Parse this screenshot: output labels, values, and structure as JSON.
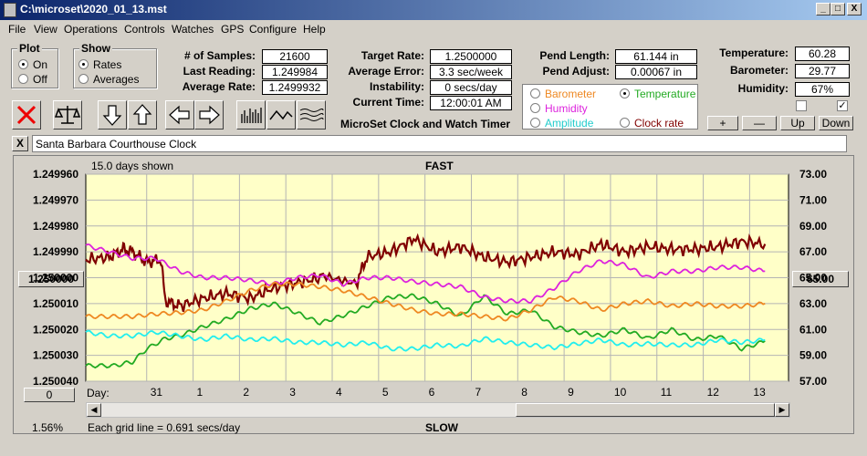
{
  "window": {
    "title": "C:\\microset\\2020_01_13.mst",
    "min": "_",
    "max": "□",
    "close": "X"
  },
  "menu": [
    "File",
    "View",
    "Operations",
    "Controls",
    "Watches",
    "GPS",
    "Configure",
    "Help"
  ],
  "plot_group": {
    "title": "Plot",
    "on": "On",
    "off": "Off"
  },
  "show_group": {
    "title": "Show",
    "rates": "Rates",
    "averages": "Averages"
  },
  "stats": {
    "samples_label": "# of Samples:",
    "samples": "21600",
    "last_label": "Last Reading:",
    "last": "1.249984",
    "avg_rate_label": "Average Rate:",
    "avg_rate": "1.2499932",
    "target_label": "Target Rate:",
    "target": "1.2500000",
    "avg_err_label": "Average Error:",
    "avg_err": "3.3 sec/week",
    "instab_label": "Instability:",
    "instab": "0 secs/day",
    "time_label": "Current Time:",
    "time": "12:00:01 AM",
    "pend_len_label": "Pend Length:",
    "pend_len": "61.144 in",
    "pend_adj_label": "Pend Adjust:",
    "pend_adj": "0.00067 in",
    "temp_label": "Temperature:",
    "temp": "60.28",
    "baro_label": "Barometer:",
    "baro": "29.77",
    "hum_label": "Humidity:",
    "hum": "67%"
  },
  "app_caption": "MicroSet Clock and Watch Timer",
  "sensor_options": {
    "barometer": "Barometer",
    "temperature": "Temperature",
    "humidity": "Humidity",
    "amplitude": "Amplitude",
    "clock_rate": "Clock rate"
  },
  "right_buttons": {
    "plus": "+",
    "minus": "—",
    "up": "Up",
    "down": "Down"
  },
  "clock_name": "Santa Barbara Courthouse Clock",
  "clear_button": "X",
  "chart_labels": {
    "days_shown": "15.0 days shown",
    "fast": "FAST",
    "slow": "SLOW",
    "center_left": "1.250000",
    "center_right": "65.00",
    "offset_btn": "0",
    "percent": "1.56%",
    "grid_note": "Each grid line = 0.691 secs/day",
    "day_label": "Day:"
  },
  "colors": {
    "rate": "#800000",
    "temperature": "#22aa22",
    "humidity": "#dd22dd",
    "barometer": "#ee8822",
    "amplitude": "#22eeee",
    "plot_bg": "#ffffc8"
  },
  "chart_data": {
    "type": "line",
    "title": "",
    "xlabel": "Day",
    "x_range_days": [
      0,
      15
    ],
    "x_tick_labels": [
      "31",
      "1",
      "2",
      "3",
      "4",
      "5",
      "6",
      "7",
      "8",
      "9",
      "10",
      "11",
      "12",
      "13"
    ],
    "left_ticks": [
      "1.249960",
      "1.249970",
      "1.249980",
      "1.249990",
      "1.250000",
      "1.250010",
      "1.250020",
      "1.250030",
      "1.250040"
    ],
    "right_ticks": [
      "73.00",
      "71.00",
      "69.00",
      "67.00",
      "65.00",
      "63.00",
      "61.00",
      "59.00",
      "57.00"
    ],
    "left_range": [
      1.24996,
      1.25004
    ],
    "right_range": [
      57,
      73
    ],
    "grid": true,
    "series": [
      {
        "name": "Rate",
        "axis": "left",
        "color": "#800000",
        "points": [
          [
            0,
            1.249993
          ],
          [
            0.5,
            1.249992
          ],
          [
            0.8,
            1.249989
          ],
          [
            1.0,
            1.24999
          ],
          [
            1.3,
            1.249994
          ],
          [
            1.6,
            1.249993
          ],
          [
            1.7,
            1.250009
          ],
          [
            2.0,
            1.250011
          ],
          [
            2.5,
            1.250008
          ],
          [
            3.0,
            1.250006
          ],
          [
            3.5,
            1.250008
          ],
          [
            4.0,
            1.250004
          ],
          [
            4.5,
            1.250002
          ],
          [
            5.0,
            1.25
          ],
          [
            5.8,
            1.250001
          ],
          [
            6.0,
            1.249992
          ],
          [
            6.5,
            1.24999
          ],
          [
            7.0,
            1.249985
          ],
          [
            7.5,
            1.24999
          ],
          [
            8.0,
            1.249988
          ],
          [
            8.5,
            1.249992
          ],
          [
            9.0,
            1.249994
          ],
          [
            9.5,
            1.249992
          ],
          [
            10.0,
            1.24999
          ],
          [
            10.5,
            1.249991
          ],
          [
            11.0,
            1.249987
          ],
          [
            11.5,
            1.24999
          ],
          [
            12.0,
            1.249988
          ],
          [
            12.5,
            1.249989
          ],
          [
            13.0,
            1.249989
          ],
          [
            13.5,
            1.249988
          ],
          [
            14.0,
            1.249986
          ],
          [
            14.5,
            1.249987
          ]
        ]
      },
      {
        "name": "Temperature",
        "axis": "right",
        "color": "#22aa22",
        "points": [
          [
            0,
            58.2
          ],
          [
            0.6,
            58.2
          ],
          [
            1.0,
            58.5
          ],
          [
            1.3,
            59.5
          ],
          [
            1.7,
            60.3
          ],
          [
            2.0,
            60.5
          ],
          [
            2.5,
            61.2
          ],
          [
            3.0,
            61.8
          ],
          [
            3.5,
            62.6
          ],
          [
            4.0,
            63.0
          ],
          [
            4.5,
            62.3
          ],
          [
            5.0,
            61.5
          ],
          [
            5.6,
            62.2
          ],
          [
            6.0,
            62.8
          ],
          [
            6.5,
            63.5
          ],
          [
            7.0,
            63.6
          ],
          [
            7.5,
            63.0
          ],
          [
            8.0,
            62.0
          ],
          [
            8.5,
            63.6
          ],
          [
            9.0,
            62.2
          ],
          [
            9.5,
            62.5
          ],
          [
            10.0,
            61.2
          ],
          [
            10.5,
            60.8
          ],
          [
            11.0,
            60.5
          ],
          [
            11.5,
            61.0
          ],
          [
            12.0,
            60.3
          ],
          [
            12.5,
            61.0
          ],
          [
            13.0,
            60.2
          ],
          [
            13.5,
            60.5
          ],
          [
            14.0,
            59.5
          ],
          [
            14.5,
            60.1
          ]
        ]
      },
      {
        "name": "Humidity",
        "axis": "right",
        "color": "#dd22dd",
        "points": [
          [
            0,
            67.5
          ],
          [
            0.5,
            67.0
          ],
          [
            1.0,
            66.5
          ],
          [
            1.5,
            66.5
          ],
          [
            2.0,
            65.5
          ],
          [
            2.5,
            65.0
          ],
          [
            3.0,
            65.0
          ],
          [
            3.5,
            64.8
          ],
          [
            4.0,
            64.5
          ],
          [
            4.5,
            65.0
          ],
          [
            5.0,
            65.2
          ],
          [
            5.5,
            64.5
          ],
          [
            6.0,
            65.0
          ],
          [
            6.5,
            65.0
          ],
          [
            7.0,
            64.7
          ],
          [
            7.5,
            64.5
          ],
          [
            8.0,
            64.3
          ],
          [
            8.5,
            63.5
          ],
          [
            9.0,
            63.2
          ],
          [
            9.5,
            63.2
          ],
          [
            10.0,
            64.2
          ],
          [
            10.5,
            65.5
          ],
          [
            11.0,
            66.3
          ],
          [
            11.5,
            66.0
          ],
          [
            12.0,
            65.0
          ],
          [
            12.5,
            65.5
          ],
          [
            13.0,
            65.5
          ],
          [
            13.5,
            65.8
          ],
          [
            14.0,
            65.8
          ],
          [
            14.5,
            65.5
          ]
        ]
      },
      {
        "name": "Barometer",
        "axis": "right",
        "color": "#ee8822",
        "points": [
          [
            0,
            62.0
          ],
          [
            0.5,
            62.0
          ],
          [
            1.0,
            62.0
          ],
          [
            1.5,
            62.2
          ],
          [
            2.0,
            62.3
          ],
          [
            2.5,
            62.5
          ],
          [
            3.0,
            63.2
          ],
          [
            3.5,
            64.0
          ],
          [
            4.0,
            64.5
          ],
          [
            4.5,
            64.5
          ],
          [
            5.0,
            64.3
          ],
          [
            5.5,
            64.0
          ],
          [
            6.0,
            63.5
          ],
          [
            6.5,
            63.0
          ],
          [
            7.0,
            62.5
          ],
          [
            7.5,
            62.2
          ],
          [
            8.0,
            62.2
          ],
          [
            8.5,
            62.0
          ],
          [
            9.0,
            61.8
          ],
          [
            9.5,
            62.5
          ],
          [
            10.0,
            63.5
          ],
          [
            10.5,
            63.2
          ],
          [
            11.0,
            62.5
          ],
          [
            11.5,
            63.0
          ],
          [
            12.0,
            63.2
          ],
          [
            12.5,
            62.8
          ],
          [
            13.0,
            63.0
          ],
          [
            13.5,
            62.8
          ],
          [
            14.0,
            62.8
          ],
          [
            14.5,
            63.0
          ]
        ]
      },
      {
        "name": "Amplitude",
        "axis": "right",
        "color": "#22eeee",
        "points": [
          [
            0,
            60.8
          ],
          [
            0.5,
            60.5
          ],
          [
            1.0,
            60.5
          ],
          [
            1.5,
            60.8
          ],
          [
            2.0,
            60.5
          ],
          [
            2.5,
            60.2
          ],
          [
            3.0,
            60.5
          ],
          [
            3.5,
            60.2
          ],
          [
            4.0,
            60.3
          ],
          [
            4.5,
            60.0
          ],
          [
            5.0,
            60.0
          ],
          [
            5.5,
            59.8
          ],
          [
            6.0,
            60.0
          ],
          [
            6.5,
            59.5
          ],
          [
            7.0,
            59.5
          ],
          [
            7.5,
            59.8
          ],
          [
            8.0,
            59.7
          ],
          [
            8.5,
            60.3
          ],
          [
            9.0,
            60.0
          ],
          [
            9.5,
            59.8
          ],
          [
            10.0,
            59.6
          ],
          [
            10.5,
            59.9
          ],
          [
            11.0,
            60.2
          ],
          [
            11.5,
            59.8
          ],
          [
            12.0,
            59.9
          ],
          [
            12.5,
            59.8
          ],
          [
            13.0,
            59.8
          ],
          [
            13.5,
            60.2
          ],
          [
            14.0,
            60.0
          ],
          [
            14.5,
            60.2
          ]
        ]
      }
    ]
  }
}
